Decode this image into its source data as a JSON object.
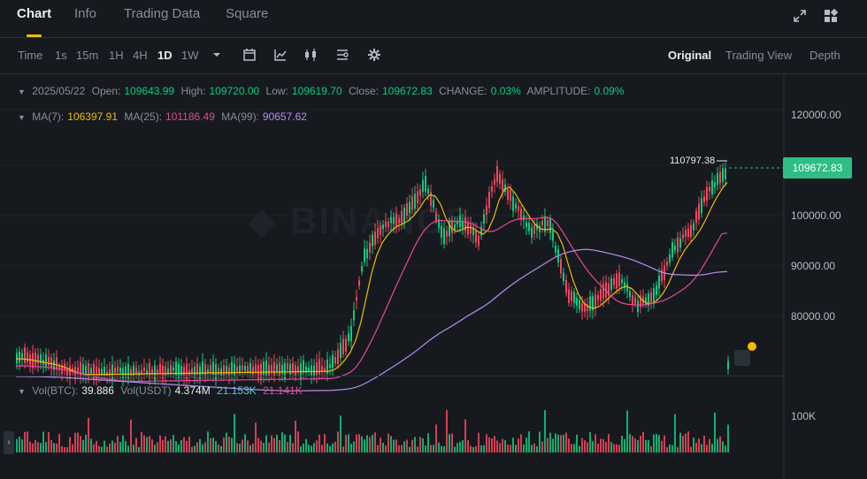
{
  "tabs": [
    {
      "label": "Chart",
      "active": true
    },
    {
      "label": "Info"
    },
    {
      "label": "Trading Data"
    },
    {
      "label": "Square"
    }
  ],
  "toolbar": {
    "time_label": "Time",
    "timeframes": [
      "1s",
      "15m",
      "1H",
      "4H",
      "1D",
      "1W"
    ],
    "active_timeframe": "1D",
    "views": [
      "Original",
      "Trading View",
      "Depth"
    ],
    "active_view": "Original"
  },
  "ohlc": {
    "date": "2025/05/22",
    "open_label": "Open:",
    "open": "109643.99",
    "high_label": "High:",
    "high": "109720.00",
    "low_label": "Low:",
    "low": "109619.70",
    "close_label": "Close:",
    "close": "109672.83",
    "change_label": "CHANGE:",
    "change": "0.03%",
    "amplitude_label": "AMPLITUDE:",
    "amplitude": "0.09%"
  },
  "ma": {
    "ma7_label": "MA(7):",
    "ma7": "106397.91",
    "ma25_label": "MA(25):",
    "ma25": "101186.49",
    "ma99_label": "MA(99):",
    "ma99": "90657.62"
  },
  "price_axis": [
    "120000.00",
    "100000.00",
    "90000.00",
    "80000.00"
  ],
  "current_price": "109672.83",
  "high_marker": "110797.38",
  "volume": {
    "label1": "Vol(BTC):",
    "v1": "39.886",
    "label2": "Vol(USDT)",
    "v2": "4.374M",
    "ma1": "21.153K",
    "ma2": "21.141K",
    "axis": "100K"
  },
  "colors": {
    "up": "#0ecb81",
    "down": "#f6465d",
    "ma7": "#f0b90b",
    "ma25": "#e6489a",
    "ma99": "#b88cf0",
    "accent": "#f0b90b"
  }
}
